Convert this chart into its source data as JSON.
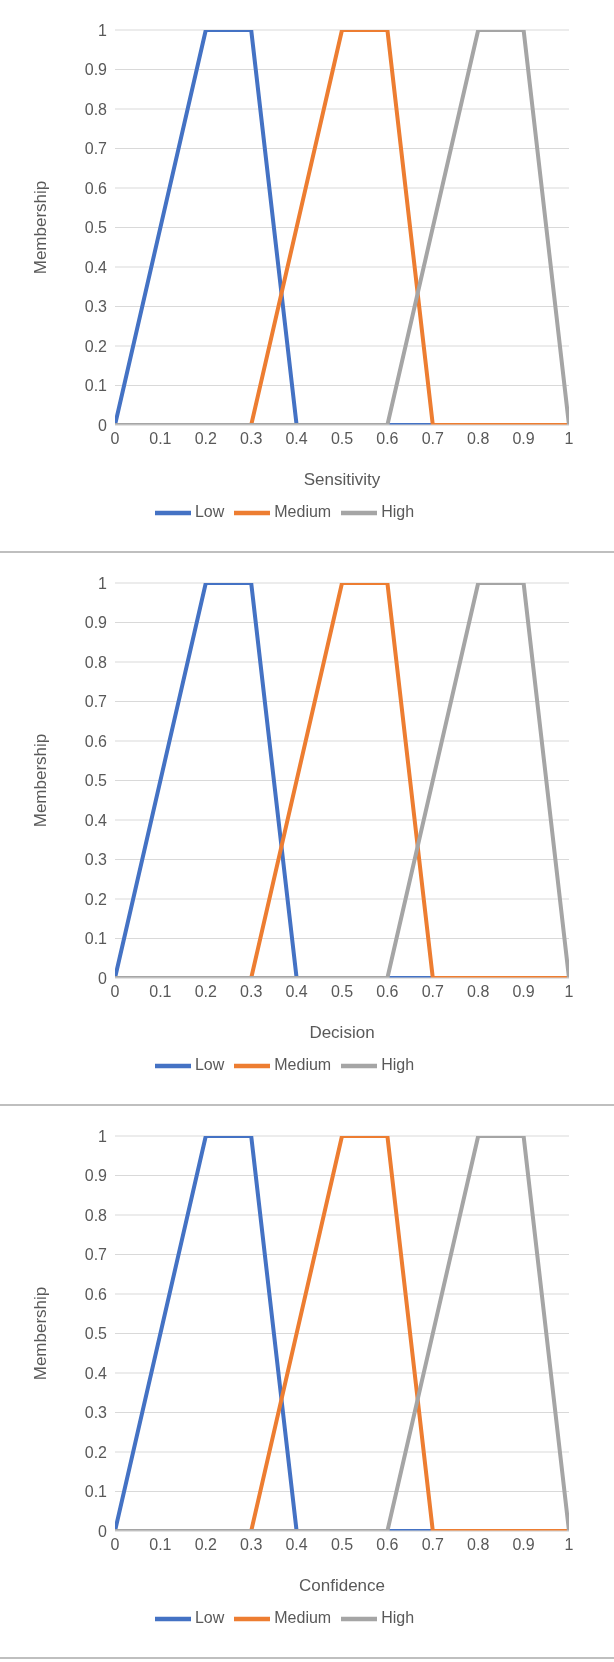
{
  "chart_data": [
    {
      "type": "line",
      "xlabel": "Sensitivity",
      "ylabel": "Membership",
      "xlim": [
        0,
        1
      ],
      "ylim": [
        0,
        1
      ],
      "xticks": [
        0,
        0.1,
        0.2,
        0.3,
        0.4,
        0.5,
        0.6,
        0.7,
        0.8,
        0.9,
        1
      ],
      "yticks": [
        0,
        0.1,
        0.2,
        0.3,
        0.4,
        0.5,
        0.6,
        0.7,
        0.8,
        0.9,
        1
      ],
      "grid": "y",
      "legend": "bottom",
      "series": [
        {
          "name": "Low",
          "color": "#4472c4",
          "x": [
            0,
            0.2,
            0.3,
            0.4,
            1
          ],
          "values": [
            0,
            1,
            1,
            0,
            0
          ]
        },
        {
          "name": "Medium",
          "color": "#ed7d31",
          "x": [
            0,
            0.3,
            0.5,
            0.6,
            0.7,
            1
          ],
          "values": [
            0,
            0,
            1,
            1,
            0,
            0
          ]
        },
        {
          "name": "High",
          "color": "#a5a5a5",
          "x": [
            0,
            0.6,
            0.8,
            0.9,
            1
          ],
          "values": [
            0,
            0,
            1,
            1,
            0
          ]
        }
      ]
    },
    {
      "type": "line",
      "xlabel": "Decision",
      "ylabel": "Membership",
      "xlim": [
        0,
        1
      ],
      "ylim": [
        0,
        1
      ],
      "xticks": [
        0,
        0.1,
        0.2,
        0.3,
        0.4,
        0.5,
        0.6,
        0.7,
        0.8,
        0.9,
        1
      ],
      "yticks": [
        0,
        0.1,
        0.2,
        0.3,
        0.4,
        0.5,
        0.6,
        0.7,
        0.8,
        0.9,
        1
      ],
      "grid": "y",
      "legend": "bottom",
      "series": [
        {
          "name": "Low",
          "color": "#4472c4",
          "x": [
            0,
            0.2,
            0.3,
            0.4,
            1
          ],
          "values": [
            0,
            1,
            1,
            0,
            0
          ]
        },
        {
          "name": "Medium",
          "color": "#ed7d31",
          "x": [
            0,
            0.3,
            0.5,
            0.6,
            0.7,
            1
          ],
          "values": [
            0,
            0,
            1,
            1,
            0,
            0
          ]
        },
        {
          "name": "High",
          "color": "#a5a5a5",
          "x": [
            0,
            0.6,
            0.8,
            0.9,
            1
          ],
          "values": [
            0,
            0,
            1,
            1,
            0
          ]
        }
      ]
    },
    {
      "type": "line",
      "xlabel": "Confidence",
      "ylabel": "Membership",
      "xlim": [
        0,
        1
      ],
      "ylim": [
        0,
        1
      ],
      "xticks": [
        0,
        0.1,
        0.2,
        0.3,
        0.4,
        0.5,
        0.6,
        0.7,
        0.8,
        0.9,
        1
      ],
      "yticks": [
        0,
        0.1,
        0.2,
        0.3,
        0.4,
        0.5,
        0.6,
        0.7,
        0.8,
        0.9,
        1
      ],
      "grid": "y",
      "legend": "bottom",
      "series": [
        {
          "name": "Low",
          "color": "#4472c4",
          "x": [
            0,
            0.2,
            0.3,
            0.4,
            1
          ],
          "values": [
            0,
            1,
            1,
            0,
            0
          ]
        },
        {
          "name": "Medium",
          "color": "#ed7d31",
          "x": [
            0,
            0.3,
            0.5,
            0.6,
            0.7,
            1
          ],
          "values": [
            0,
            0,
            1,
            1,
            0,
            0
          ]
        },
        {
          "name": "High",
          "color": "#a5a5a5",
          "x": [
            0,
            0.6,
            0.8,
            0.9,
            1
          ],
          "values": [
            0,
            0,
            1,
            1,
            0
          ]
        }
      ]
    }
  ]
}
